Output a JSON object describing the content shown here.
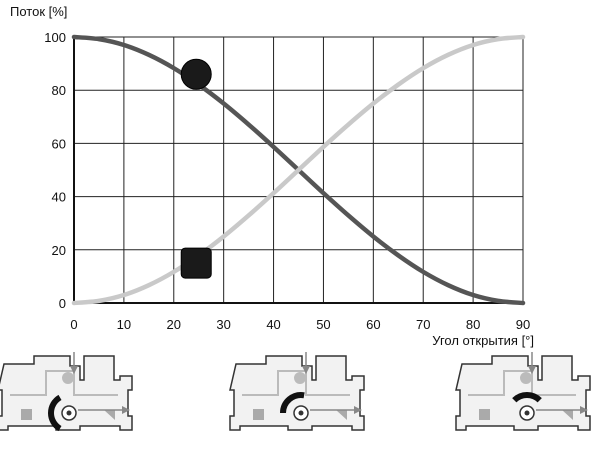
{
  "chart_data": {
    "type": "line",
    "ylabel": "Поток [%]",
    "xlabel": "Угол открытия [°]",
    "xlim": [
      0,
      90
    ],
    "ylim": [
      0,
      100
    ],
    "x_ticks": [
      "0",
      "10",
      "20",
      "30",
      "40",
      "50",
      "60",
      "70",
      "80",
      "90"
    ],
    "y_ticks": [
      "0",
      "20",
      "40",
      "60",
      "80",
      "100"
    ],
    "grid": true,
    "series": [
      {
        "color": "#555555",
        "marker": "circle",
        "x": [
          0,
          5,
          10,
          15,
          20,
          25,
          30,
          35,
          40,
          45,
          50,
          55,
          60,
          65,
          70,
          75,
          80,
          85,
          90
        ],
        "y": [
          100,
          99.2,
          97,
          93.3,
          88.3,
          82.1,
          75,
          67.1,
          58.7,
          50,
          41.3,
          32.9,
          25,
          17.9,
          11.7,
          6.7,
          3,
          0.8,
          0
        ]
      },
      {
        "color": "#c9c9c9",
        "marker": "square",
        "x": [
          0,
          5,
          10,
          15,
          20,
          25,
          30,
          35,
          40,
          45,
          50,
          55,
          60,
          65,
          70,
          75,
          80,
          85,
          90
        ],
        "y": [
          0,
          0.8,
          3,
          6.7,
          11.7,
          17.9,
          25,
          32.9,
          41.3,
          50,
          58.7,
          67.1,
          75,
          82.1,
          88.3,
          93.3,
          97,
          99.2,
          100
        ]
      }
    ],
    "markers": [
      {
        "series": 0,
        "shape": "circle",
        "x": 24.5,
        "y": 86
      },
      {
        "series": 1,
        "shape": "square",
        "x": 24.5,
        "y": 15
      }
    ]
  },
  "valve_icons": [
    {
      "name": "valve-position-0",
      "arc_color": "#111111"
    },
    {
      "name": "valve-position-45",
      "arc_color": "#111111"
    },
    {
      "name": "valve-position-90",
      "arc_color": "#111111"
    }
  ]
}
